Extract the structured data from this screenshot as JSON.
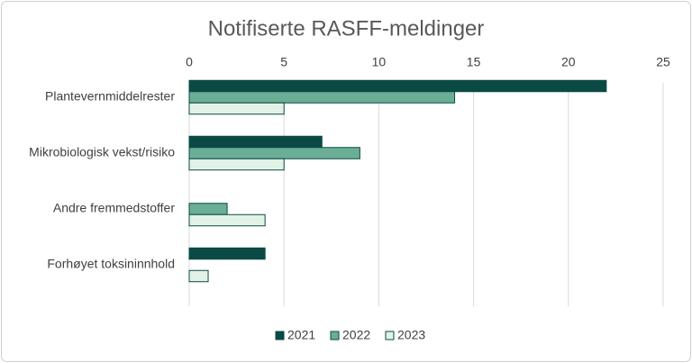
{
  "chart_data": {
    "type": "bar",
    "orientation": "horizontal",
    "title": "Notifiserte RASFF-meldinger",
    "categories": [
      "Plantevernmiddelrester",
      "Mikrobiologisk vekst/risiko",
      "Andre fremmedstoffer",
      "Forhøyet toksininnhold"
    ],
    "series": [
      {
        "name": "2021",
        "color": "#0b4a44",
        "values": [
          22,
          7,
          0,
          4
        ]
      },
      {
        "name": "2022",
        "color": "#6aae96",
        "values": [
          14,
          9,
          2,
          0
        ]
      },
      {
        "name": "2023",
        "color": "#e2f2e6",
        "values": [
          5,
          5,
          4,
          1
        ]
      }
    ],
    "xlim": [
      0,
      25
    ],
    "xticks": [
      0,
      5,
      10,
      15,
      20,
      25
    ],
    "grid": true,
    "legend": "bottom"
  }
}
